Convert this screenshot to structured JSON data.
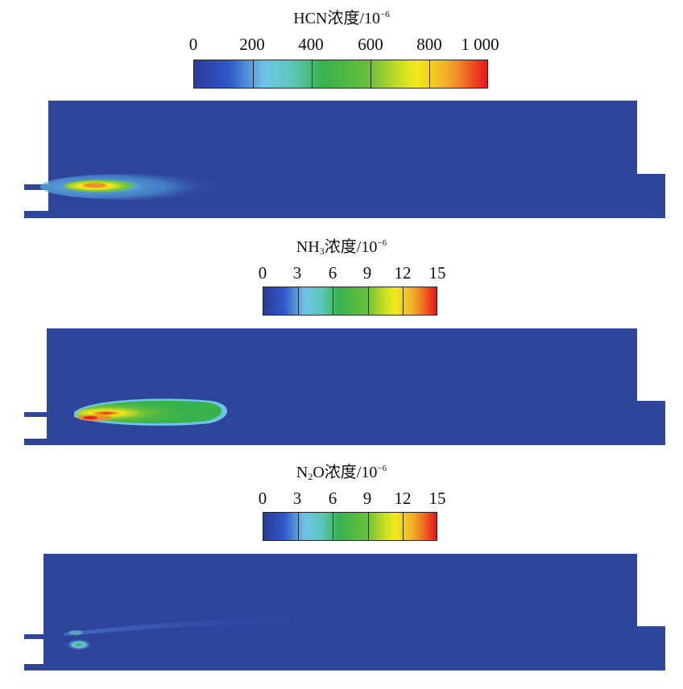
{
  "colormap": [
    "#2b3b9b",
    "#2f58c8",
    "#6fc4e6",
    "#36b24a",
    "#6cc03a",
    "#f2ea1c",
    "#f08a24",
    "#e8141c"
  ],
  "domain_color": "#2f459c",
  "panels": [
    {
      "id": "hcn",
      "title_main": "HCN浓度/10",
      "title_sub": "",
      "title_tail": "",
      "title_sup": "−6",
      "ticks": [
        "0",
        "200",
        "400",
        "600",
        "800",
        "1 000"
      ]
    },
    {
      "id": "nh3",
      "title_main": "NH",
      "title_sub": "3",
      "title_tail": "浓度/10",
      "title_sup": "−6",
      "ticks": [
        "0",
        "3",
        "6",
        "9",
        "12",
        "15"
      ]
    },
    {
      "id": "n2o",
      "title_main": "N",
      "title_sub": "2",
      "title_tail": "O浓度/10",
      "title_sup": "−6",
      "ticks": [
        "0",
        "3",
        "6",
        "9",
        "12",
        "15"
      ]
    }
  ]
}
